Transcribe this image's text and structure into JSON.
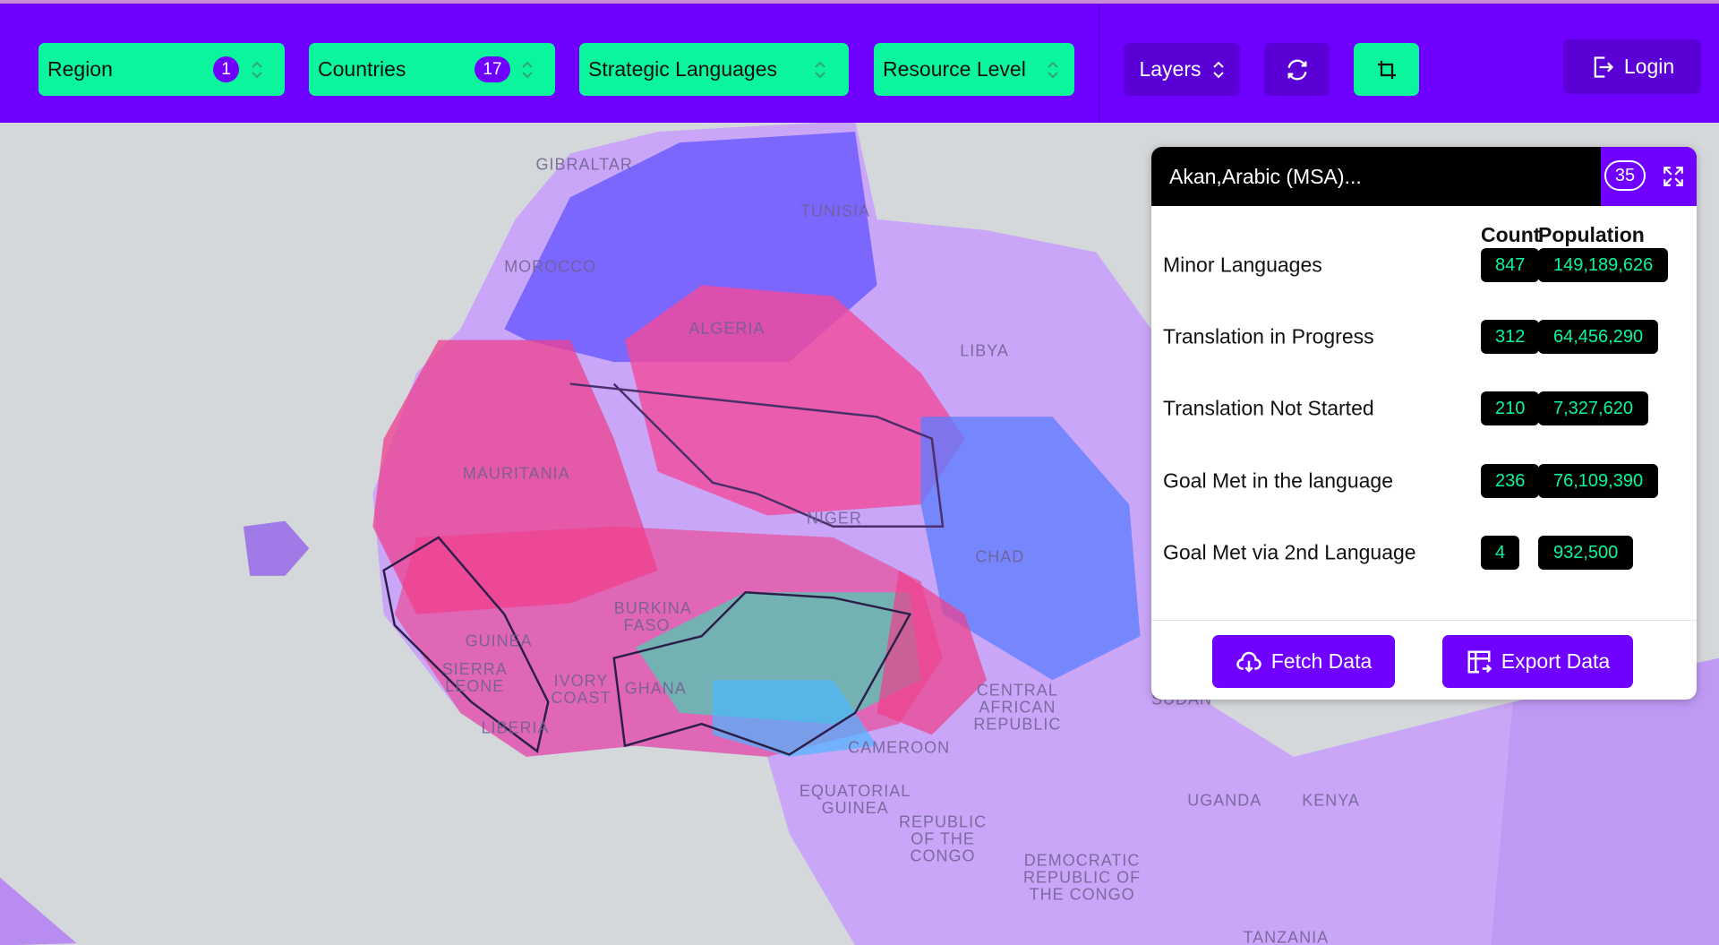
{
  "toolbar": {
    "filters": [
      {
        "label": "Region",
        "badge": "1"
      },
      {
        "label": "Countries",
        "badge": "17"
      },
      {
        "label": "Strategic Languages"
      },
      {
        "label": "Resource Level"
      }
    ],
    "layers": "Layers",
    "login": "Login"
  },
  "panel": {
    "title": "Akan,Arabic (MSA)...",
    "badge": "35",
    "columns": [
      "Count",
      "Population"
    ],
    "rows": [
      [
        "Minor Languages",
        "847",
        "149,189,626"
      ],
      [
        "Translation in Progress",
        "312",
        "64,456,290"
      ],
      [
        "Translation Not Started",
        "210",
        "7,327,620"
      ],
      [
        "Goal Met in the language",
        "236",
        "76,109,390"
      ],
      [
        "Goal Met via 2nd Language",
        "4",
        "932,500"
      ]
    ],
    "buttons": [
      "Fetch Data",
      "Export Data"
    ]
  },
  "map": {
    "labels": [
      "GIBRALTAR",
      "TUNISIA",
      "MOROCCO",
      "ALGERIA",
      "LIBYA",
      "MAURITANIA",
      "NIGER",
      "CHAD",
      "BURKINA FASO",
      "GUINEA",
      "SIERRA LEONE",
      "IVORY COAST",
      "GHANA",
      "LIBERIA",
      "CAMEROON",
      "EQUATORIAL GUINEA",
      "CENTRAL AFRICAN REPUBLIC",
      "SUDAN",
      "UGANDA",
      "KENYA",
      "REPUBLIC OF THE CONGO",
      "DEMOCRATIC REPUBLIC OF THE CONGO",
      "TANZANIA"
    ]
  }
}
